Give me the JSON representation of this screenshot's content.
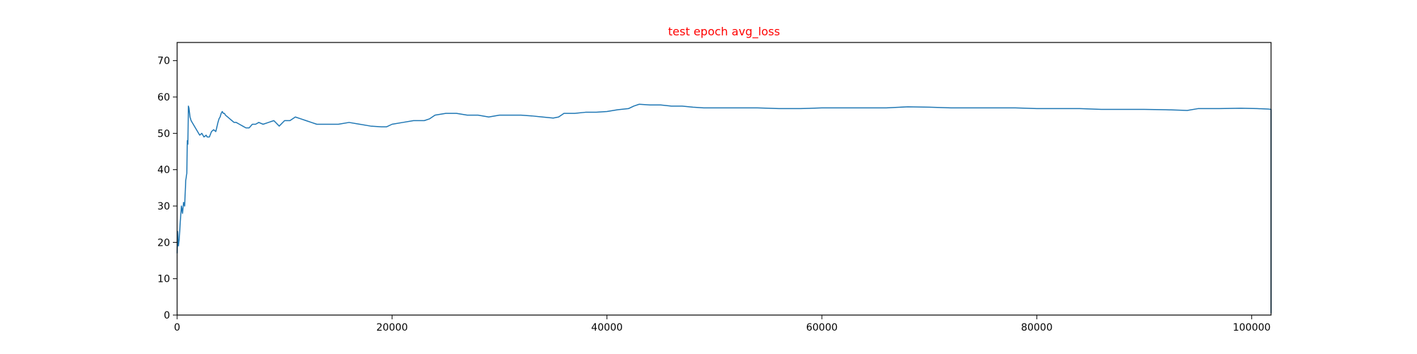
{
  "chart_data": {
    "type": "line",
    "title": "test epoch avg_loss",
    "title_color": "#ff0000",
    "xlabel": "",
    "ylabel": "",
    "xlim": [
      0,
      101800
    ],
    "ylim": [
      0,
      75
    ],
    "x_ticks": [
      0,
      20000,
      40000,
      60000,
      80000,
      100000
    ],
    "y_ticks": [
      0,
      10,
      20,
      30,
      40,
      50,
      60,
      70
    ],
    "grid": false,
    "legend": "none",
    "series": [
      {
        "color": "#1f77b4",
        "x": [
          0,
          50,
          120,
          200,
          300,
          400,
          500,
          600,
          700,
          800,
          850,
          900,
          950,
          1000,
          1050,
          1100,
          1200,
          1300,
          1500,
          1700,
          1900,
          2100,
          2300,
          2500,
          2700,
          2800,
          3000,
          3200,
          3400,
          3600,
          3800,
          3900,
          4000,
          4100,
          4200,
          4300,
          4400,
          4500,
          4700,
          4900,
          5100,
          5300,
          5500,
          5800,
          6100,
          6400,
          6700,
          7000,
          7300,
          7600,
          8000,
          8500,
          9000,
          9500,
          10000,
          10500,
          11000,
          11500,
          12000,
          12500,
          13000,
          14000,
          15000,
          16000,
          17000,
          18000,
          19000,
          19500,
          20000,
          21000,
          22000,
          23000,
          23500,
          24000,
          25000,
          26000,
          27000,
          28000,
          29000,
          30000,
          31000,
          32000,
          33000,
          34000,
          35000,
          35500,
          36000,
          37000,
          38000,
          39000,
          40000,
          41000,
          42000,
          42500,
          43000,
          44000,
          45000,
          46000,
          47000,
          48000,
          49000,
          50000,
          52000,
          54000,
          56000,
          58000,
          60000,
          62000,
          64000,
          66000,
          68000,
          70000,
          72000,
          74000,
          76000,
          78000,
          80000,
          82000,
          84000,
          86000,
          88000,
          90000,
          92000,
          94000,
          95000,
          97000,
          99000,
          100500,
          101500,
          101800,
          101800
        ],
        "y": [
          17,
          23,
          19,
          21,
          26,
          30,
          28,
          31,
          30,
          37,
          38,
          39,
          48,
          47,
          57.5,
          57,
          54.5,
          53.5,
          52.5,
          51.5,
          50.5,
          49.5,
          50,
          49,
          49.5,
          49,
          49,
          50.5,
          51,
          50.5,
          53,
          54,
          54.5,
          55.5,
          56,
          55.5,
          55.5,
          55,
          54.5,
          54,
          53.5,
          53,
          53,
          52.5,
          52,
          51.5,
          51.5,
          52.5,
          52.5,
          53,
          52.5,
          53,
          53.5,
          52,
          53.5,
          53.5,
          54.5,
          54,
          53.5,
          53,
          52.5,
          52.5,
          52.5,
          53,
          52.5,
          52,
          51.8,
          51.8,
          52.5,
          53,
          53.5,
          53.5,
          54,
          55,
          55.5,
          55.5,
          55,
          55,
          54.5,
          55,
          55,
          55,
          54.8,
          54.5,
          54.2,
          54.5,
          55.5,
          55.5,
          55.8,
          55.8,
          56,
          56.5,
          56.8,
          57.5,
          58,
          57.8,
          57.8,
          57.5,
          57.5,
          57.2,
          57,
          57,
          57,
          57,
          56.8,
          56.8,
          57,
          57,
          57,
          57,
          57.3,
          57.2,
          57,
          57,
          57,
          57,
          56.8,
          56.8,
          56.8,
          56.6,
          56.6,
          56.6,
          56.5,
          56.3,
          56.8,
          56.8,
          56.9,
          56.8,
          56.7,
          56.6,
          0.5
        ]
      }
    ]
  }
}
